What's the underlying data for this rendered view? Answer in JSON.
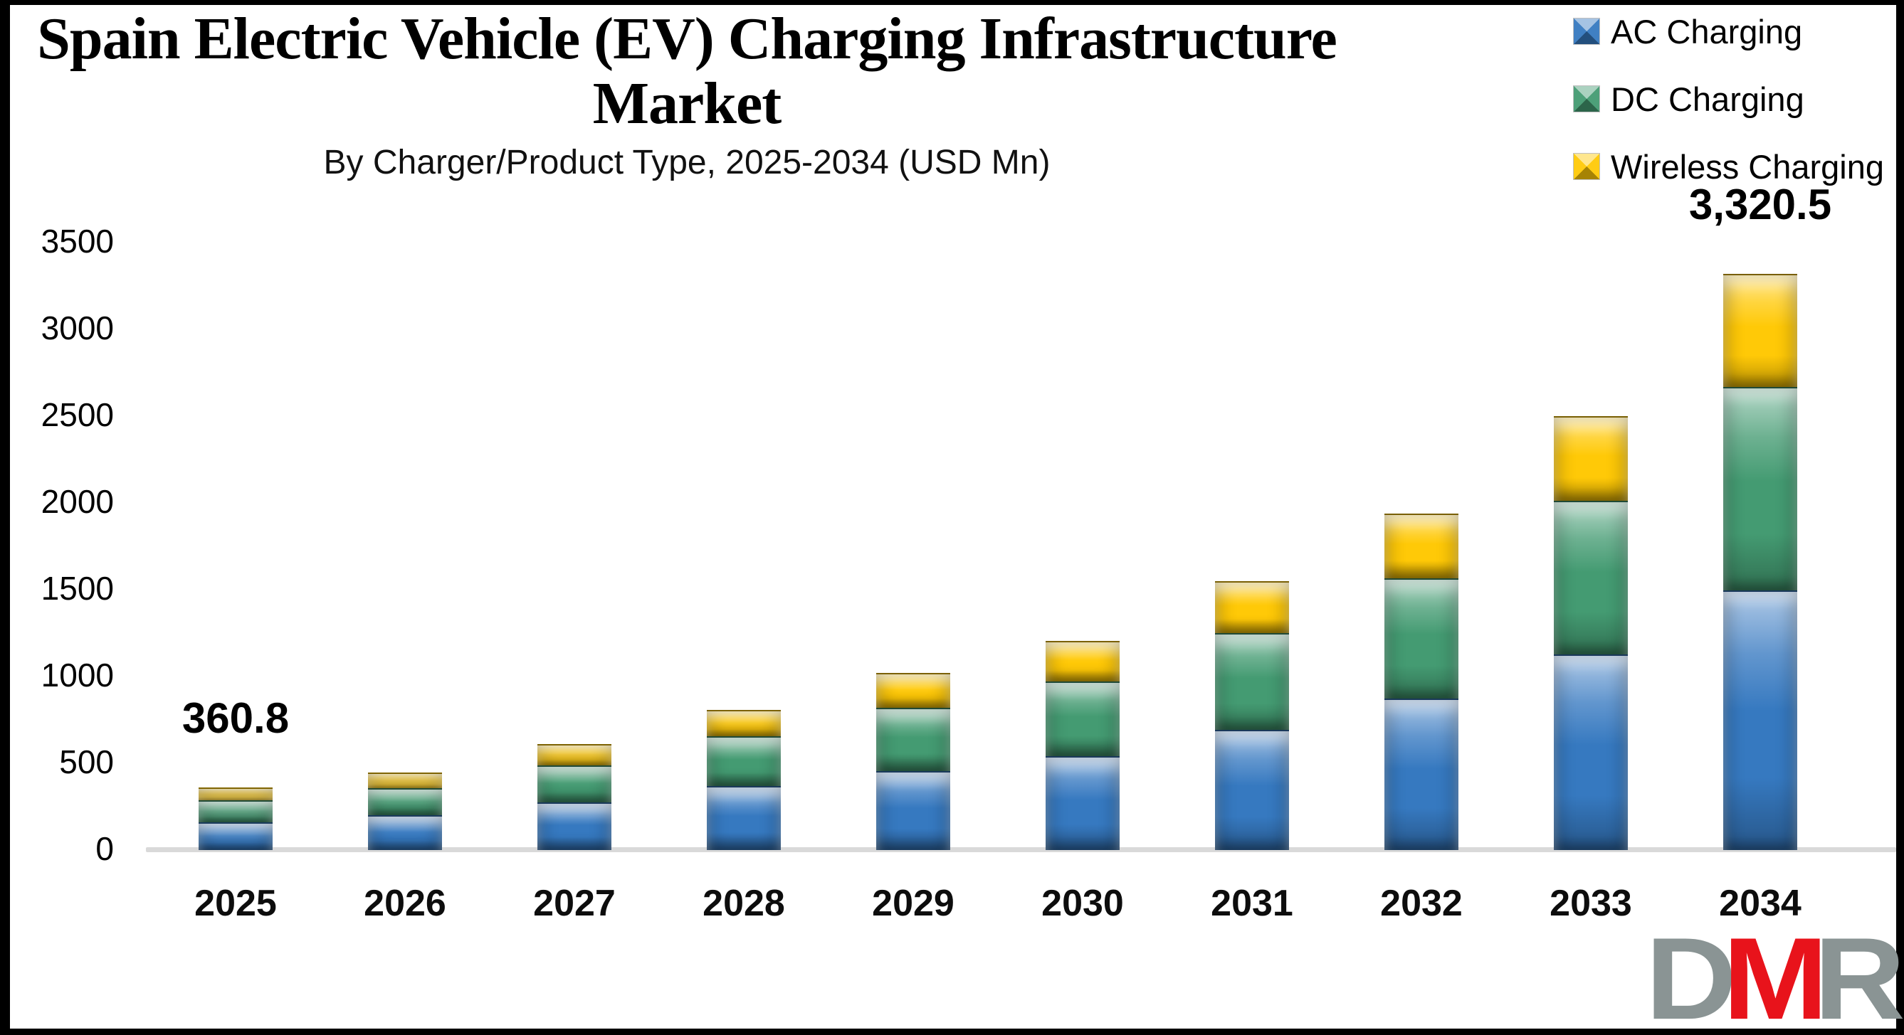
{
  "title": {
    "line1": "Spain Electric Vehicle (EV) Charging Infrastructure",
    "line2": "Market",
    "subtitle": "By Charger/Product Type, 2025-2034 (USD Mn)"
  },
  "legend": [
    {
      "label": "AC Charging",
      "series": "ac"
    },
    {
      "label": "DC Charging",
      "series": "dc"
    },
    {
      "label": "Wireless Charging",
      "series": "wireless"
    }
  ],
  "colors": {
    "ac": "#3679C0",
    "dc": "#449B72",
    "wireless": "#FFC907",
    "axis_line": "#D9D9D9",
    "text": "#000000",
    "logo_gray": "#8A9494",
    "logo_red": "#E8131B"
  },
  "chart_data": {
    "type": "bar",
    "subtype": "stacked-vertical",
    "title": "Spain Electric Vehicle (EV) Charging Infrastructure Market",
    "subtitle": "By Charger/Product Type, 2025-2034 (USD Mn)",
    "unit": "USD Mn",
    "grid": false,
    "legend_position": "top-right",
    "categories": [
      2025,
      2026,
      2027,
      2028,
      2029,
      2030,
      2031,
      2032,
      2033,
      2034
    ],
    "series": [
      {
        "name": "AC Charging",
        "color": "#3679C0",
        "values": [
          158.1,
          201.4,
          273.1,
          368.5,
          456.9,
          539.6,
          694.0,
          871.3,
          1126.8,
          1497.2
        ]
      },
      {
        "name": "DC Charging",
        "color": "#449B72",
        "values": [
          129.0,
          154.0,
          215.8,
          286.6,
          361.9,
          429.9,
          555.6,
          696.0,
          886.9,
          1170.1
        ]
      },
      {
        "name": "Wireless Charging",
        "color": "#FFC907",
        "values": [
          73.7,
          91.7,
          122.8,
          154.0,
          201.8,
          235.0,
          300.1,
          371.4,
          487.2,
          653.2
        ]
      }
    ],
    "totals": [
      360.8,
      447.1,
      611.7,
      809.1,
      1020.6,
      1204.5,
      1549.7,
      1938.7,
      2500.9,
      3320.5
    ],
    "shown_total_labels": [
      {
        "year": 2025,
        "text": "360.8"
      },
      {
        "year": 2034,
        "text": "3,320.5"
      }
    ],
    "y_axis": {
      "min": 0,
      "max": 3500,
      "step": 500,
      "ticks": [
        0,
        500,
        1000,
        1500,
        2000,
        2500,
        3000,
        3500
      ]
    }
  },
  "logo": {
    "letters": [
      {
        "char": "D",
        "color": "#8A9494"
      },
      {
        "char": "M",
        "color": "#E8131B"
      },
      {
        "char": "R",
        "color": "#8A9494"
      }
    ]
  }
}
